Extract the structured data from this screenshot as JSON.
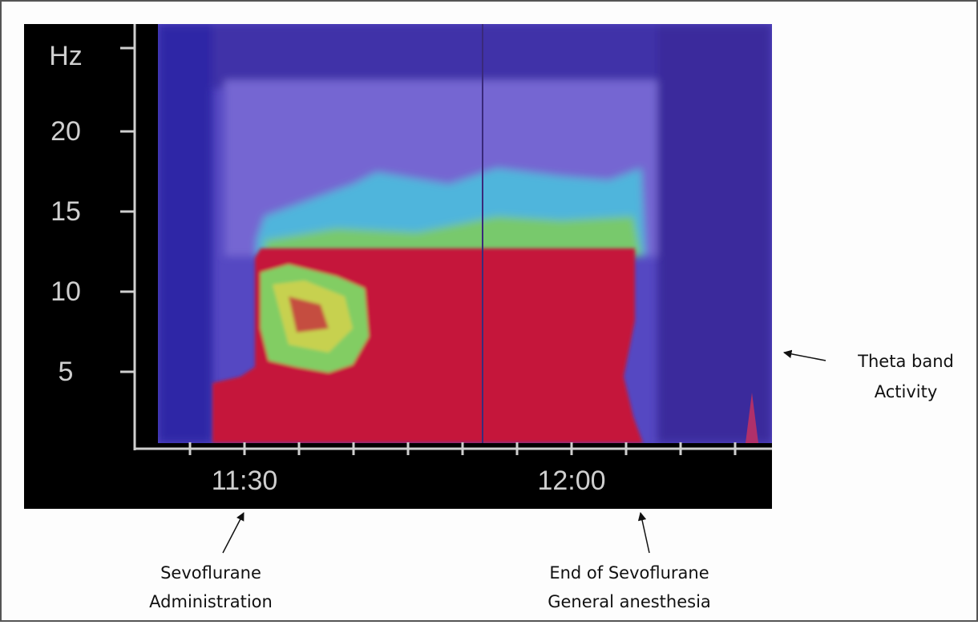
{
  "chart_data": {
    "type": "spectrogram",
    "y_label": "Hz",
    "ylim": [
      0,
      25
    ],
    "yticks": [
      5,
      10,
      15,
      20
    ],
    "xticks": [
      null,
      "11:30",
      null,
      null,
      null,
      null,
      null,
      "12:00",
      null,
      null,
      null
    ],
    "annotations": [
      {
        "lines": [
          "Theta band",
          "Activity"
        ]
      },
      {
        "lines": [
          "Sevoflurane",
          "Administration"
        ]
      },
      {
        "lines": [
          "End of Sevoflurane",
          "General anesthesia"
        ]
      }
    ]
  }
}
